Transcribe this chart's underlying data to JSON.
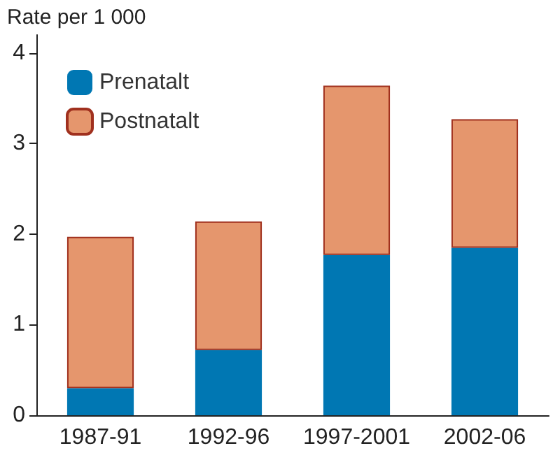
{
  "chart_data": {
    "type": "bar",
    "stacked": true,
    "ylabel": "Rate per 1 000",
    "categories": [
      "1987-91",
      "1992-96",
      "1997-2001",
      "2002-06"
    ],
    "series": [
      {
        "name": "Prenatalt",
        "color": "#0077b3",
        "values": [
          0.3,
          0.72,
          1.77,
          1.85
        ]
      },
      {
        "name": "Postnatalt",
        "color": "#e5966d",
        "values": [
          1.67,
          1.42,
          1.87,
          1.42
        ]
      }
    ],
    "ylim": [
      0,
      4.2
    ],
    "yticks": [
      0,
      1,
      2,
      3,
      4
    ],
    "grid": false,
    "legend": "top left"
  }
}
